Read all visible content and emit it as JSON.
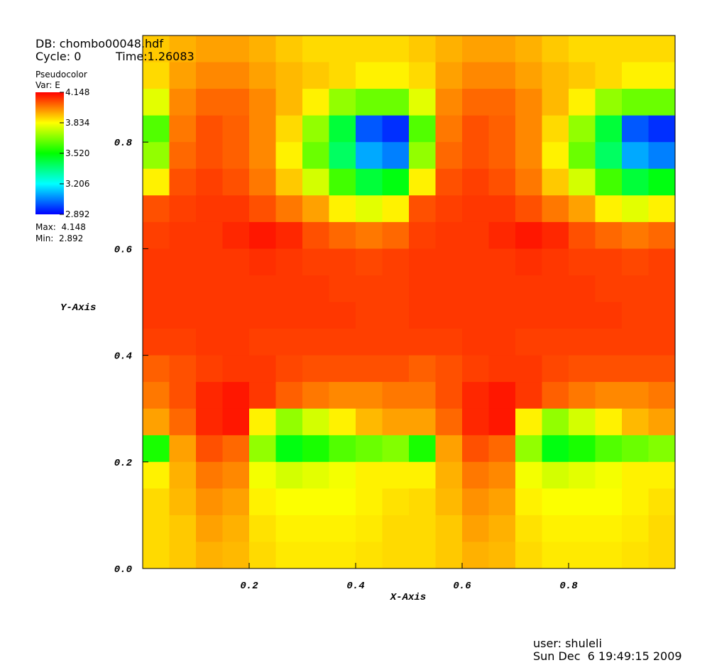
{
  "header": {
    "db": "DB: chombo00048.hdf",
    "cycle": "Cycle: 0",
    "time": "Time:1.26083"
  },
  "legend": {
    "plot": "Pseudocolor",
    "var": "Var: E",
    "max": "Max:  4.148",
    "min": "Min:  2.892",
    "clim": [
      2.892,
      4.148
    ],
    "ticks": [
      4.148,
      3.834,
      {
        "value": 3.52,
        "label": "3.520"
      },
      3.206,
      2.892
    ],
    "colormap": [
      "#0000ff",
      "#00ffff",
      "#00ff00",
      "#ffff00",
      "#ff0000"
    ]
  },
  "footer": {
    "user": "user: shuleli",
    "date": "Sun Dec  6 19:49:15 2009"
  },
  "chart_data": {
    "type": "heatmap",
    "x_label": "X-Axis",
    "y_label": "Y-Axis",
    "xlim": [
      0,
      1
    ],
    "ylim": [
      0,
      1
    ],
    "xticks": [
      0.2,
      0.4,
      0.6,
      0.8
    ],
    "yticks": [
      {
        "value": 0,
        "label": "0.0"
      },
      0.2,
      0.4,
      0.6,
      0.8
    ],
    "z": [
      [
        3.9,
        3.93,
        3.95,
        3.95,
        3.93,
        3.9,
        3.88,
        3.88,
        3.88,
        3.88,
        3.9,
        3.93,
        3.95,
        3.95,
        3.93,
        3.9,
        3.88,
        3.88,
        3.88,
        3.88
      ],
      [
        3.88,
        3.95,
        3.98,
        3.98,
        3.95,
        3.92,
        3.9,
        3.88,
        3.85,
        3.85,
        3.88,
        3.95,
        3.98,
        3.98,
        3.95,
        3.92,
        3.9,
        3.88,
        3.85,
        3.85
      ],
      [
        3.8,
        3.98,
        4.02,
        4.02,
        3.98,
        3.92,
        3.85,
        3.7,
        3.65,
        3.65,
        3.8,
        3.98,
        4.02,
        4.02,
        3.98,
        3.92,
        3.85,
        3.7,
        3.65,
        3.65
      ],
      [
        3.62,
        4.0,
        4.05,
        4.03,
        3.98,
        3.88,
        3.7,
        3.45,
        3.0,
        2.95,
        3.62,
        4.0,
        4.05,
        4.03,
        3.98,
        3.88,
        3.7,
        3.45,
        3.0,
        2.95
      ],
      [
        3.7,
        4.02,
        4.05,
        4.03,
        3.98,
        3.85,
        3.65,
        3.4,
        3.1,
        3.05,
        3.7,
        4.02,
        4.05,
        4.03,
        3.98,
        3.85,
        3.65,
        3.4,
        3.1,
        3.05
      ],
      [
        3.85,
        4.05,
        4.07,
        4.05,
        4.0,
        3.9,
        3.78,
        3.6,
        3.45,
        3.5,
        3.85,
        4.05,
        4.07,
        4.05,
        4.0,
        3.9,
        3.78,
        3.6,
        3.45,
        3.5
      ],
      [
        4.05,
        4.07,
        4.08,
        4.08,
        4.05,
        4.0,
        3.95,
        3.85,
        3.8,
        3.85,
        4.05,
        4.07,
        4.08,
        4.08,
        4.05,
        4.0,
        3.95,
        3.85,
        3.8,
        3.85
      ],
      [
        4.07,
        4.08,
        4.08,
        4.1,
        4.12,
        4.1,
        4.05,
        4.02,
        4.0,
        4.02,
        4.07,
        4.08,
        4.08,
        4.1,
        4.12,
        4.1,
        4.05,
        4.02,
        4.0,
        4.02
      ],
      [
        4.08,
        4.08,
        4.08,
        4.08,
        4.09,
        4.08,
        4.07,
        4.07,
        4.06,
        4.07,
        4.08,
        4.08,
        4.08,
        4.08,
        4.09,
        4.08,
        4.07,
        4.07,
        4.06,
        4.07
      ],
      [
        4.08,
        4.08,
        4.08,
        4.08,
        4.08,
        4.08,
        4.08,
        4.07,
        4.07,
        4.07,
        4.08,
        4.08,
        4.08,
        4.08,
        4.08,
        4.08,
        4.08,
        4.07,
        4.07,
        4.07
      ],
      [
        4.08,
        4.08,
        4.08,
        4.08,
        4.08,
        4.08,
        4.08,
        4.08,
        4.07,
        4.07,
        4.08,
        4.08,
        4.08,
        4.08,
        4.08,
        4.08,
        4.08,
        4.08,
        4.07,
        4.07
      ],
      [
        4.07,
        4.07,
        4.08,
        4.08,
        4.07,
        4.07,
        4.07,
        4.07,
        4.07,
        4.07,
        4.07,
        4.07,
        4.08,
        4.08,
        4.07,
        4.07,
        4.07,
        4.07,
        4.07,
        4.07
      ],
      [
        4.03,
        4.05,
        4.07,
        4.08,
        4.08,
        4.06,
        4.05,
        4.05,
        4.05,
        4.05,
        4.03,
        4.05,
        4.07,
        4.08,
        4.08,
        4.06,
        4.05,
        4.05,
        4.05,
        4.05
      ],
      [
        4.0,
        4.05,
        4.1,
        4.12,
        4.08,
        4.03,
        4.0,
        3.98,
        3.98,
        4.0,
        4.0,
        4.05,
        4.1,
        4.12,
        4.08,
        4.03,
        4.0,
        3.98,
        3.98,
        4.0
      ],
      [
        3.95,
        4.02,
        4.1,
        4.12,
        3.85,
        3.7,
        3.78,
        3.85,
        3.92,
        3.95,
        3.95,
        4.02,
        4.1,
        4.12,
        3.85,
        3.7,
        3.78,
        3.85,
        3.92,
        3.95
      ],
      [
        3.55,
        3.95,
        4.05,
        4.02,
        3.7,
        3.5,
        3.55,
        3.62,
        3.65,
        3.68,
        3.55,
        3.95,
        4.05,
        4.02,
        3.7,
        3.5,
        3.55,
        3.62,
        3.65,
        3.68
      ],
      [
        3.85,
        3.93,
        4.0,
        3.98,
        3.82,
        3.78,
        3.8,
        3.82,
        3.85,
        3.85,
        3.85,
        3.93,
        4.0,
        3.98,
        3.82,
        3.78,
        3.8,
        3.82,
        3.85,
        3.85
      ],
      [
        3.88,
        3.92,
        3.97,
        3.95,
        3.85,
        3.83,
        3.83,
        3.83,
        3.85,
        3.87,
        3.88,
        3.92,
        3.97,
        3.95,
        3.85,
        3.83,
        3.83,
        3.83,
        3.85,
        3.87
      ],
      [
        3.88,
        3.9,
        3.95,
        3.93,
        3.87,
        3.85,
        3.85,
        3.85,
        3.86,
        3.88,
        3.88,
        3.9,
        3.95,
        3.93,
        3.87,
        3.85,
        3.85,
        3.85,
        3.86,
        3.88
      ],
      [
        3.88,
        3.9,
        3.93,
        3.92,
        3.88,
        3.86,
        3.86,
        3.86,
        3.87,
        3.88,
        3.88,
        3.9,
        3.93,
        3.92,
        3.88,
        3.86,
        3.86,
        3.86,
        3.87,
        3.88
      ]
    ]
  }
}
